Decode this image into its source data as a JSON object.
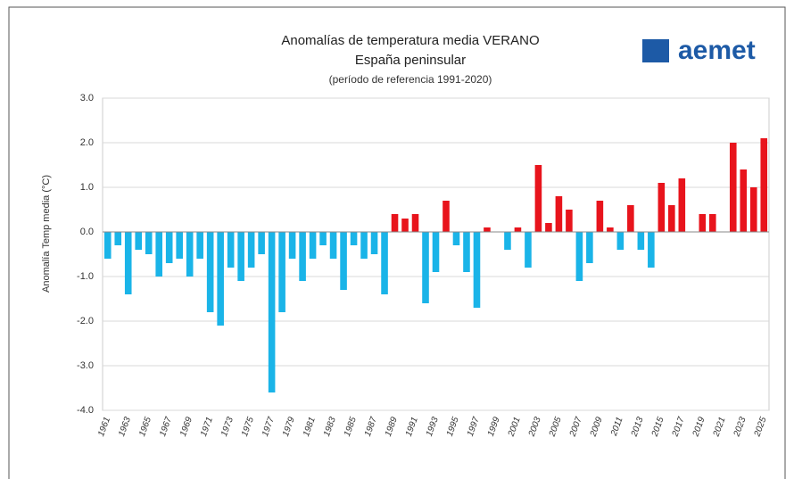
{
  "chart_data": {
    "type": "bar",
    "title": "Anomalías de temperatura media VERANO",
    "subtitle": "España peninsular",
    "note": "(período de referencia 1991-2020)",
    "logo": "aemet",
    "y_label": "Anomalía Temp media (°C)",
    "categories": [
      "1961",
      null,
      "1963",
      null,
      "1965",
      null,
      "1967",
      null,
      "1969",
      null,
      "1971",
      null,
      "1973",
      null,
      "1975",
      null,
      "1977",
      null,
      "1979",
      null,
      "1981",
      null,
      "1983",
      null,
      "1985",
      null,
      "1987",
      null,
      "1989",
      null,
      "1991",
      null,
      "1993",
      null,
      "1995",
      null,
      "1997",
      null,
      "1999",
      null,
      "2001",
      null,
      "2003",
      null,
      "2005",
      null,
      "2007",
      null,
      "2009",
      null,
      "2011",
      null,
      "2013",
      null,
      "2015",
      null,
      "2017",
      null,
      "2019",
      null,
      "2021",
      null,
      "2023",
      null,
      "2025"
    ],
    "values": [
      -0.6,
      -0.3,
      -1.4,
      -0.4,
      -0.5,
      -1.0,
      -0.7,
      -0.6,
      -1.0,
      -0.6,
      -1.8,
      -2.1,
      -0.8,
      -1.1,
      -0.8,
      -0.5,
      -3.6,
      -1.8,
      -0.6,
      -1.1,
      -0.6,
      -0.3,
      -0.6,
      -1.3,
      -0.3,
      -0.6,
      -0.5,
      -1.4,
      0.4,
      0.3,
      0.4,
      -1.6,
      -0.9,
      0.7,
      -0.3,
      -0.9,
      -1.7,
      0.1,
      0.0,
      -0.4,
      0.1,
      -0.8,
      1.5,
      0.2,
      0.8,
      0.5,
      -1.1,
      -0.7,
      0.7,
      0.1,
      -0.4,
      0.6,
      -0.4,
      -0.8,
      1.1,
      0.6,
      1.2,
      0.0,
      0.4,
      0.4,
      0.0,
      2.0,
      1.4,
      1.0,
      2.1
    ],
    "color_positive": "#e8141c",
    "color_negative": "#1ab4e8",
    "ylim": [
      -4,
      3
    ],
    "yticks": [
      {
        "value": -4,
        "label": "-4.0"
      },
      {
        "value": -3,
        "label": "-3.0"
      },
      {
        "value": -2,
        "label": "-2.0"
      },
      {
        "value": -1,
        "label": "-1.0"
      },
      {
        "value": 0,
        "label": "0.0"
      },
      {
        "value": 1,
        "label": "1.0"
      },
      {
        "value": 2,
        "label": "2.0"
      },
      {
        "value": 3,
        "label": "3.0"
      }
    ],
    "grid": true
  }
}
